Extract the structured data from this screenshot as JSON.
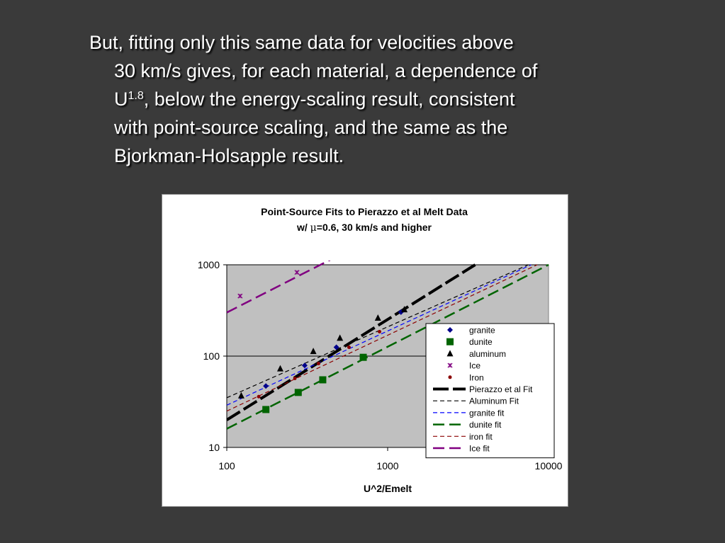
{
  "slide": {
    "lines": [
      "But, fitting only this same data for velocities above",
      "30 km/s gives, for each material, a dependence of",
      "U",
      "1.8",
      ", below the energy-scaling result, consistent",
      "with point-source scaling, and the same as the",
      "Bjorkman-Holsapple result."
    ]
  },
  "chart_data": {
    "type": "scatter",
    "title": "Point-Source Fits to Pierazzo et al Melt Data",
    "subtitle_pre": "w/ ",
    "subtitle_mu": "μ",
    "subtitle_post": "=0.6, 30 km/s and higher",
    "xlabel": "U^2/Emelt",
    "ylabel": "",
    "x_scale": "log",
    "y_scale": "log",
    "xlim": [
      100,
      10000
    ],
    "ylim": [
      10,
      1000
    ],
    "x_ticks": [
      "100",
      "1000",
      "10000"
    ],
    "y_ticks": [
      "1000",
      "100",
      "10"
    ],
    "legend_position": "right-inside",
    "series": [
      {
        "name": "granite",
        "kind": "marker",
        "marker": "diamond",
        "color": "#00008b",
        "points": [
          [
            175,
            47
          ],
          [
            305,
            79
          ],
          [
            480,
            125
          ],
          [
            1210,
            303
          ]
        ]
      },
      {
        "name": "dunite",
        "kind": "marker",
        "marker": "square",
        "color": "#006400",
        "points": [
          [
            175,
            26
          ],
          [
            278,
            40
          ],
          [
            395,
            55
          ],
          [
            705,
            97
          ]
        ]
      },
      {
        "name": "aluminum",
        "kind": "marker",
        "marker": "triangle",
        "color": "#000000",
        "points": [
          [
            123,
            37
          ],
          [
            215,
            73
          ],
          [
            345,
            113
          ],
          [
            505,
            158
          ],
          [
            870,
            262
          ],
          [
            1270,
            324
          ]
        ]
      },
      {
        "name": "Ice",
        "kind": "marker",
        "marker": "x",
        "color": "#800080",
        "points": [
          [
            121,
            455
          ],
          [
            273,
            825
          ]
        ]
      },
      {
        "name": "Iron",
        "kind": "marker",
        "marker": "dot",
        "color": "#8b0000",
        "points": [
          [
            158,
            36
          ],
          [
            265,
            57
          ],
          [
            372,
            83
          ],
          [
            575,
            125
          ],
          [
            890,
            185
          ]
        ]
      },
      {
        "name": "Pierazzo et al  Fit",
        "kind": "line",
        "dash": "22,6",
        "width": 4,
        "color": "#000000",
        "line": [
          [
            100,
            20
          ],
          [
            3500,
            1000
          ]
        ]
      },
      {
        "name": "Aluminum Fit",
        "kind": "line",
        "dash": "6,4",
        "width": 1.2,
        "color": "#000000",
        "line": [
          [
            100,
            35
          ],
          [
            7500,
            1000
          ]
        ]
      },
      {
        "name": "granite fit",
        "kind": "line",
        "dash": "6,4",
        "width": 1.2,
        "color": "#0000ff",
        "line": [
          [
            100,
            29
          ],
          [
            7800,
            1000
          ]
        ]
      },
      {
        "name": "dunite fit",
        "kind": "line",
        "dash": "16,7",
        "width": 2.5,
        "color": "#006400",
        "line": [
          [
            100,
            16
          ],
          [
            10000,
            1000
          ]
        ]
      },
      {
        "name": "iron fit",
        "kind": "line",
        "dash": "6,4",
        "width": 1.2,
        "color": "#8b0000",
        "line": [
          [
            100,
            25
          ],
          [
            8500,
            1000
          ]
        ]
      },
      {
        "name": "Ice fit",
        "kind": "line",
        "dash": "16,7",
        "width": 2.5,
        "color": "#800080",
        "line": [
          [
            100,
            300
          ],
          [
            600,
            1500
          ]
        ]
      }
    ]
  }
}
